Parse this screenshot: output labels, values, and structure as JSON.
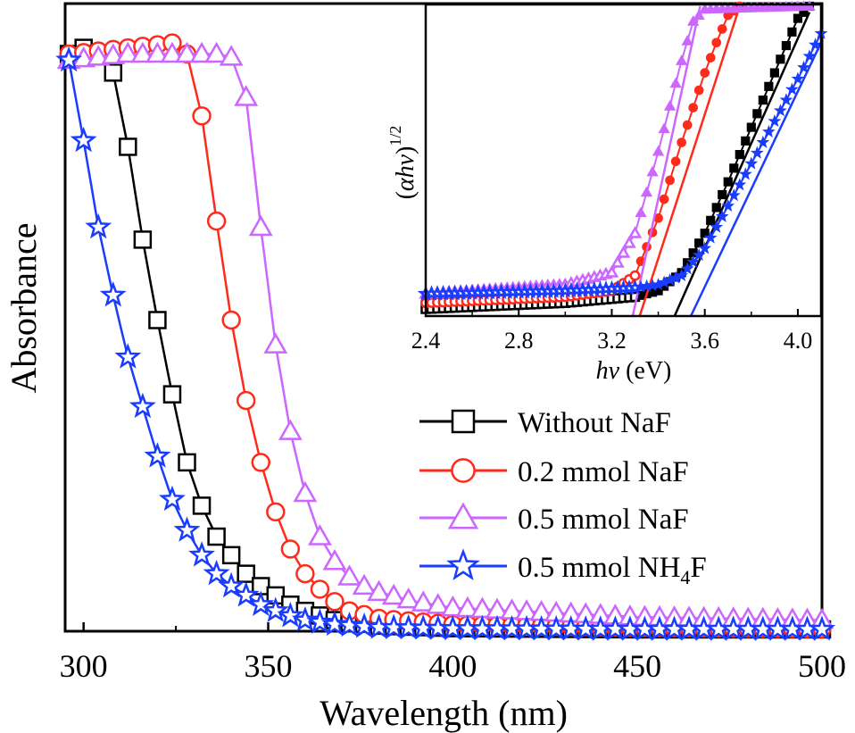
{
  "chart_data": {
    "type": "line",
    "xlabel": "Wavelength (nm)",
    "ylabel": "Absorbance",
    "xlim": [
      295,
      500
    ],
    "ylim": [
      0,
      1.0
    ],
    "xticks": [
      "300",
      "350",
      "400",
      "450",
      "500"
    ],
    "series": [
      {
        "name": "Without NaF",
        "legend_label": "Without NaF",
        "color": "#000000",
        "marker": "square",
        "x": [
          296,
          300,
          304,
          308,
          312,
          316,
          320,
          324,
          328,
          332,
          336,
          340,
          344,
          348,
          352,
          356,
          360,
          368,
          380,
          400,
          450,
          500
        ],
        "y": [
          0.93,
          0.94,
          0.93,
          0.9,
          0.78,
          0.63,
          0.5,
          0.38,
          0.27,
          0.2,
          0.15,
          0.12,
          0.09,
          0.07,
          0.055,
          0.04,
          0.03,
          0.015,
          0.006,
          0.002,
          0.0,
          0.0
        ]
      },
      {
        "name": "0.2 mmol NaF",
        "legend_label": "0.2 mmol NaF",
        "color": "#ff2a1a",
        "marker": "circle",
        "x": [
          296,
          304,
          312,
          320,
          324,
          328,
          332,
          336,
          340,
          344,
          348,
          352,
          356,
          360,
          364,
          368,
          372,
          380,
          400,
          450,
          500
        ],
        "y": [
          0.93,
          0.935,
          0.94,
          0.945,
          0.948,
          0.93,
          0.83,
          0.66,
          0.5,
          0.37,
          0.27,
          0.19,
          0.13,
          0.09,
          0.065,
          0.045,
          0.03,
          0.018,
          0.008,
          0.003,
          0.001
        ]
      },
      {
        "name": "0.5 mmol NaF",
        "legend_label": "0.5 mmol NaF",
        "color": "#cc66ff",
        "marker": "triangle",
        "x": [
          296,
          304,
          312,
          320,
          328,
          336,
          340,
          344,
          348,
          352,
          356,
          360,
          364,
          368,
          372,
          376,
          380,
          390,
          400,
          450,
          500
        ],
        "y": [
          0.92,
          0.925,
          0.93,
          0.93,
          0.93,
          0.93,
          0.925,
          0.86,
          0.65,
          0.46,
          0.32,
          0.22,
          0.15,
          0.11,
          0.085,
          0.07,
          0.06,
          0.045,
          0.035,
          0.02,
          0.015
        ]
      },
      {
        "name": "0.5 mmol NH4F",
        "legend_label": "0.5 mmol NH",
        "legend_subscript": "4",
        "legend_suffix": "F",
        "color": "#1a3cff",
        "marker": "star",
        "x": [
          296,
          300,
          304,
          308,
          312,
          316,
          320,
          324,
          328,
          332,
          336,
          340,
          344,
          348,
          352,
          356,
          360,
          368,
          380,
          400,
          450,
          500
        ],
        "y": [
          0.92,
          0.79,
          0.65,
          0.54,
          0.44,
          0.36,
          0.28,
          0.21,
          0.16,
          0.12,
          0.09,
          0.07,
          0.055,
          0.04,
          0.03,
          0.022,
          0.015,
          0.008,
          0.003,
          0.001,
          0.0,
          0.0
        ]
      }
    ],
    "legend_position": "bottom-right",
    "inset": {
      "type": "scatter",
      "xlabel_italic": "hv",
      "xlabel_unit": " (eV)",
      "ylabel_open": "(",
      "ylabel_italic": "αhv",
      "ylabel_close": ")",
      "ylabel_superscript": "1/2",
      "xlim": [
        2.4,
        4.1
      ],
      "ylim": [
        0,
        1.0
      ],
      "xticks": [
        "2.4",
        "2.8",
        "3.2",
        "3.6",
        "4.0"
      ],
      "series": [
        {
          "name": "Without NaF",
          "color": "#000000",
          "marker": "square",
          "curve_x": [
            2.4,
            3.0,
            3.3,
            3.4,
            3.5,
            3.6,
            3.7,
            3.8,
            3.9,
            4.0,
            4.05
          ],
          "curve_y": [
            0.0,
            0.02,
            0.04,
            0.06,
            0.12,
            0.25,
            0.42,
            0.6,
            0.78,
            0.96,
            1.0
          ],
          "fit_line_x": [
            3.47,
            4.05
          ],
          "fit_line_y": [
            0.0,
            0.98
          ]
        },
        {
          "name": "0.2 mmol NaF",
          "color": "#ff2a1a",
          "marker": "circle",
          "curve_x": [
            2.4,
            3.0,
            3.2,
            3.3,
            3.4,
            3.5,
            3.6,
            3.65,
            3.7,
            3.75
          ],
          "curve_y": [
            0.02,
            0.04,
            0.06,
            0.11,
            0.3,
            0.55,
            0.78,
            0.88,
            0.97,
            1.0
          ],
          "fit_line_x": [
            3.32,
            3.75
          ],
          "fit_line_y": [
            0.0,
            1.0
          ]
        },
        {
          "name": "0.5 mmol NaF",
          "color": "#cc66ff",
          "marker": "triangle",
          "curve_x": [
            2.4,
            3.0,
            3.2,
            3.3,
            3.4,
            3.5,
            3.55,
            3.6,
            4.05
          ],
          "curve_y": [
            0.05,
            0.08,
            0.12,
            0.25,
            0.52,
            0.82,
            0.95,
            0.99,
            1.0
          ],
          "fit_line_x": [
            3.29,
            3.58
          ],
          "fit_line_y": [
            0.0,
            1.0
          ]
        },
        {
          "name": "0.5 mmol NH4F",
          "color": "#1a3cff",
          "marker": "star",
          "curve_x": [
            2.4,
            3.0,
            3.3,
            3.4,
            3.5,
            3.6,
            3.7,
            3.8,
            3.9,
            4.0,
            4.1
          ],
          "curve_y": [
            0.05,
            0.06,
            0.07,
            0.08,
            0.11,
            0.2,
            0.34,
            0.48,
            0.62,
            0.76,
            0.91
          ],
          "fit_line_x": [
            3.54,
            4.1
          ],
          "fit_line_y": [
            0.0,
            0.88
          ]
        }
      ]
    }
  }
}
